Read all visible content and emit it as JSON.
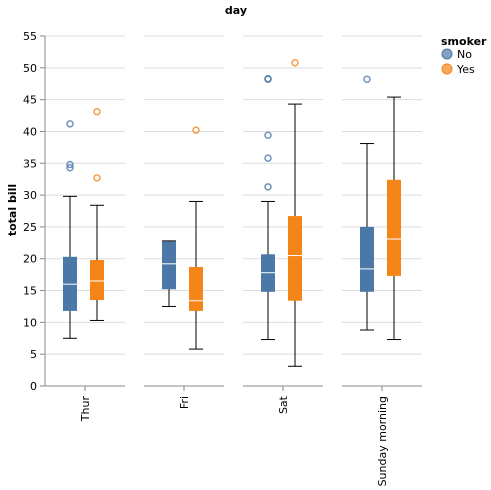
{
  "chart_data": {
    "type": "boxplot",
    "column_title": "day",
    "ylabel": "total bill",
    "ylim": [
      0,
      55
    ],
    "yticks": [
      0,
      5,
      10,
      15,
      20,
      25,
      30,
      35,
      40,
      45,
      50,
      55
    ],
    "grid": true,
    "legend": {
      "title": "smoker",
      "placement": "top-right",
      "entries": [
        {
          "name": "No",
          "color": "#4c78a8"
        },
        {
          "name": "Yes",
          "color": "#f58518"
        }
      ]
    },
    "panels": [
      {
        "category": "Thur",
        "boxes": [
          {
            "smoker": "No",
            "min": 7.5,
            "q1": 11.8,
            "median": 16.0,
            "q3": 20.3,
            "max": 29.8,
            "outliers": [
              34.3,
              34.8,
              41.2
            ]
          },
          {
            "smoker": "Yes",
            "min": 10.3,
            "q1": 13.5,
            "median": 16.5,
            "q3": 19.8,
            "max": 28.4,
            "outliers": [
              32.7,
              43.1
            ]
          }
        ]
      },
      {
        "category": "Fri",
        "boxes": [
          {
            "smoker": "No",
            "min": 12.5,
            "q1": 15.2,
            "median": 19.2,
            "q3": 22.7,
            "max": 22.8,
            "outliers": []
          },
          {
            "smoker": "Yes",
            "min": 5.8,
            "q1": 11.8,
            "median": 13.4,
            "q3": 18.7,
            "max": 29.0,
            "outliers": [
              40.2
            ]
          }
        ]
      },
      {
        "category": "Sat",
        "boxes": [
          {
            "smoker": "No",
            "min": 7.3,
            "q1": 14.8,
            "median": 17.8,
            "q3": 20.7,
            "max": 29.0,
            "outliers": [
              31.3,
              35.8,
              39.4,
              48.2,
              48.3
            ]
          },
          {
            "smoker": "Yes",
            "min": 3.1,
            "q1": 13.4,
            "median": 20.5,
            "q3": 26.7,
            "max": 44.3,
            "outliers": [
              50.8
            ]
          }
        ]
      },
      {
        "category": "Sunday morning",
        "boxes": [
          {
            "smoker": "No",
            "min": 8.8,
            "q1": 14.8,
            "median": 18.4,
            "q3": 25.0,
            "max": 38.1,
            "outliers": [
              48.2
            ]
          },
          {
            "smoker": "Yes",
            "min": 7.3,
            "q1": 17.3,
            "median": 23.1,
            "q3": 32.4,
            "max": 45.4,
            "outliers": []
          }
        ]
      }
    ]
  }
}
